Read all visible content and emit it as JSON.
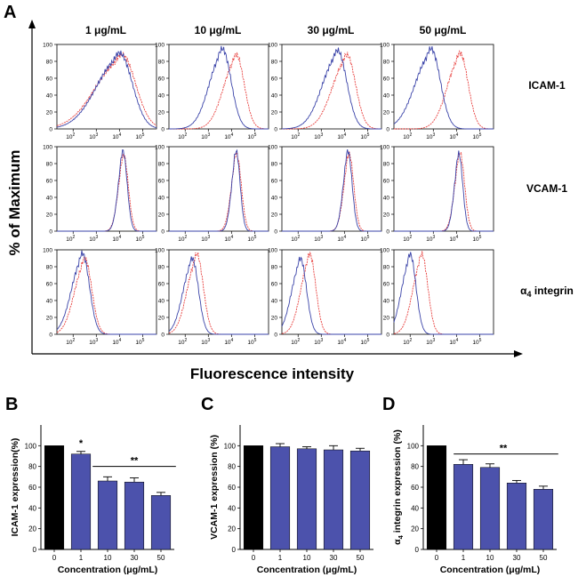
{
  "panel_labels": {
    "a": "A",
    "b": "B",
    "c": "C",
    "d": "D"
  },
  "colors": {
    "blue": "#3a43a8",
    "red": "#e8413f",
    "black": "#000000",
    "bar_fill": "#4c52ac",
    "axis": "#000000"
  },
  "chart_data": [
    {
      "id": "A",
      "type": "histogram-grid",
      "ylabel": "% of Maximum",
      "xlabel": "Fluorescence intensity",
      "column_headers": [
        "1 μg/mL",
        "10 μg/mL",
        "30 μg/mL",
        "50 μg/mL"
      ],
      "row_labels": [
        "ICAM-1",
        "VCAM-1"
      ],
      "row3_label": {
        "prefix": "α",
        "sub": "4",
        "suffix": " integrin"
      },
      "y_ticks": [
        0,
        20,
        40,
        60,
        80,
        100
      ],
      "ylim": [
        0,
        100
      ],
      "x_ticks": [
        {
          "base": "10",
          "exp": "2",
          "log": 2
        },
        {
          "base": "10",
          "exp": "3",
          "log": 3
        },
        {
          "base": "10",
          "exp": "4",
          "log": 4
        },
        {
          "base": "10",
          "exp": "5",
          "log": 5
        }
      ],
      "xlim_log10": [
        1.3,
        5.6
      ],
      "series_names": [
        "blue",
        "red"
      ],
      "series_colors": [
        "#3a43a8",
        "#e8413f"
      ],
      "histograms": [
        [
          {
            "blue": {
              "mu": 4.0,
              "sigma": 0.55,
              "peak": 90,
              "tail": 0.5
            },
            "red": {
              "mu": 4.1,
              "sigma": 0.6,
              "peak": 88,
              "tail": 0.55
            }
          },
          {
            "blue": {
              "mu": 3.6,
              "sigma": 0.38,
              "peak": 95,
              "tail": 0.3
            },
            "red": {
              "mu": 4.2,
              "sigma": 0.35,
              "peak": 88,
              "tail": 0.35
            }
          },
          {
            "blue": {
              "mu": 3.7,
              "sigma": 0.4,
              "peak": 93,
              "tail": 0.4
            },
            "red": {
              "mu": 4.1,
              "sigma": 0.38,
              "peak": 88,
              "tail": 0.4
            }
          },
          {
            "blue": {
              "mu": 2.9,
              "sigma": 0.4,
              "peak": 95,
              "tail": 0.45
            },
            "red": {
              "mu": 4.15,
              "sigma": 0.35,
              "peak": 90,
              "tail": 0.35
            }
          }
        ],
        [
          {
            "blue": {
              "mu": 4.15,
              "sigma": 0.18,
              "peak": 95,
              "tail": 0.1
            },
            "red": {
              "mu": 4.18,
              "sigma": 0.2,
              "peak": 90,
              "tail": 0.1
            }
          },
          {
            "blue": {
              "mu": 4.2,
              "sigma": 0.17,
              "peak": 95,
              "tail": 0.1
            },
            "red": {
              "mu": 4.22,
              "sigma": 0.2,
              "peak": 92,
              "tail": 0.1
            }
          },
          {
            "blue": {
              "mu": 4.15,
              "sigma": 0.18,
              "peak": 95,
              "tail": 0.1
            },
            "red": {
              "mu": 4.2,
              "sigma": 0.2,
              "peak": 92,
              "tail": 0.1
            }
          },
          {
            "blue": {
              "mu": 4.1,
              "sigma": 0.17,
              "peak": 92,
              "tail": 0.1
            },
            "red": {
              "mu": 4.15,
              "sigma": 0.2,
              "peak": 93,
              "tail": 0.1
            }
          }
        ],
        [
          {
            "blue": {
              "mu": 2.4,
              "sigma": 0.3,
              "peak": 96,
              "tail": 0.35
            },
            "red": {
              "mu": 2.5,
              "sigma": 0.3,
              "peak": 90,
              "tail": 0.3
            }
          },
          {
            "blue": {
              "mu": 2.3,
              "sigma": 0.27,
              "peak": 90,
              "tail": 0.3
            },
            "red": {
              "mu": 2.5,
              "sigma": 0.28,
              "peak": 95,
              "tail": 0.3
            }
          },
          {
            "blue": {
              "mu": 2.1,
              "sigma": 0.26,
              "peak": 90,
              "tail": 0.3
            },
            "red": {
              "mu": 2.5,
              "sigma": 0.26,
              "peak": 95,
              "tail": 0.3
            }
          },
          {
            "blue": {
              "mu": 2.0,
              "sigma": 0.25,
              "peak": 95,
              "tail": 0.3
            },
            "red": {
              "mu": 2.5,
              "sigma": 0.26,
              "peak": 95,
              "tail": 0.3
            }
          }
        ]
      ]
    },
    {
      "id": "B",
      "type": "bar",
      "ylabel": "ICAM-1 expression(%)",
      "xlabel": "Concentration  (μg/mL)",
      "categories": [
        "0",
        "1",
        "10",
        "30",
        "50"
      ],
      "values": [
        100,
        92,
        66,
        65,
        52
      ],
      "errors": [
        0,
        2.5,
        4,
        4,
        3
      ],
      "bar_colors": [
        "#000000",
        "#4c52ac",
        "#4c52ac",
        "#4c52ac",
        "#4c52ac"
      ],
      "ylim": [
        0,
        120
      ],
      "y_ticks": [
        0,
        20,
        40,
        60,
        80,
        100
      ],
      "significance": [
        {
          "label": "*",
          "from": 1,
          "to": 1,
          "y": 97,
          "line": false
        },
        {
          "label": "**",
          "from": 2,
          "to": 4,
          "y": 80,
          "line": true
        }
      ]
    },
    {
      "id": "C",
      "type": "bar",
      "ylabel": "VCAM-1 expression (%)",
      "xlabel": "Concentration  (μg/mL)",
      "categories": [
        "0",
        "1",
        "10",
        "30",
        "50"
      ],
      "values": [
        100,
        99,
        97,
        96,
        95
      ],
      "errors": [
        0,
        3,
        2,
        4,
        2.5
      ],
      "bar_colors": [
        "#000000",
        "#4c52ac",
        "#4c52ac",
        "#4c52ac",
        "#4c52ac"
      ],
      "ylim": [
        0,
        120
      ],
      "y_ticks": [
        0,
        20,
        40,
        60,
        80,
        100
      ],
      "significance": []
    },
    {
      "id": "D",
      "type": "bar",
      "ylabel": "α4 integrin expression (%)",
      "ylabel_parts": {
        "prefix": "α",
        "sub": "4",
        "suffix": " integrin expression (%)"
      },
      "xlabel": "Concentration  (μg/mL)",
      "categories": [
        "0",
        "1",
        "10",
        "30",
        "50"
      ],
      "values": [
        100,
        82,
        79,
        64,
        58
      ],
      "errors": [
        0,
        4.5,
        3.5,
        2.5,
        3
      ],
      "bar_colors": [
        "#000000",
        "#4c52ac",
        "#4c52ac",
        "#4c52ac",
        "#4c52ac"
      ],
      "ylim": [
        0,
        120
      ],
      "y_ticks": [
        0,
        20,
        40,
        60,
        80,
        100
      ],
      "significance": [
        {
          "label": "**",
          "from": 1,
          "to": 4,
          "y": 92,
          "line": true
        }
      ]
    }
  ]
}
